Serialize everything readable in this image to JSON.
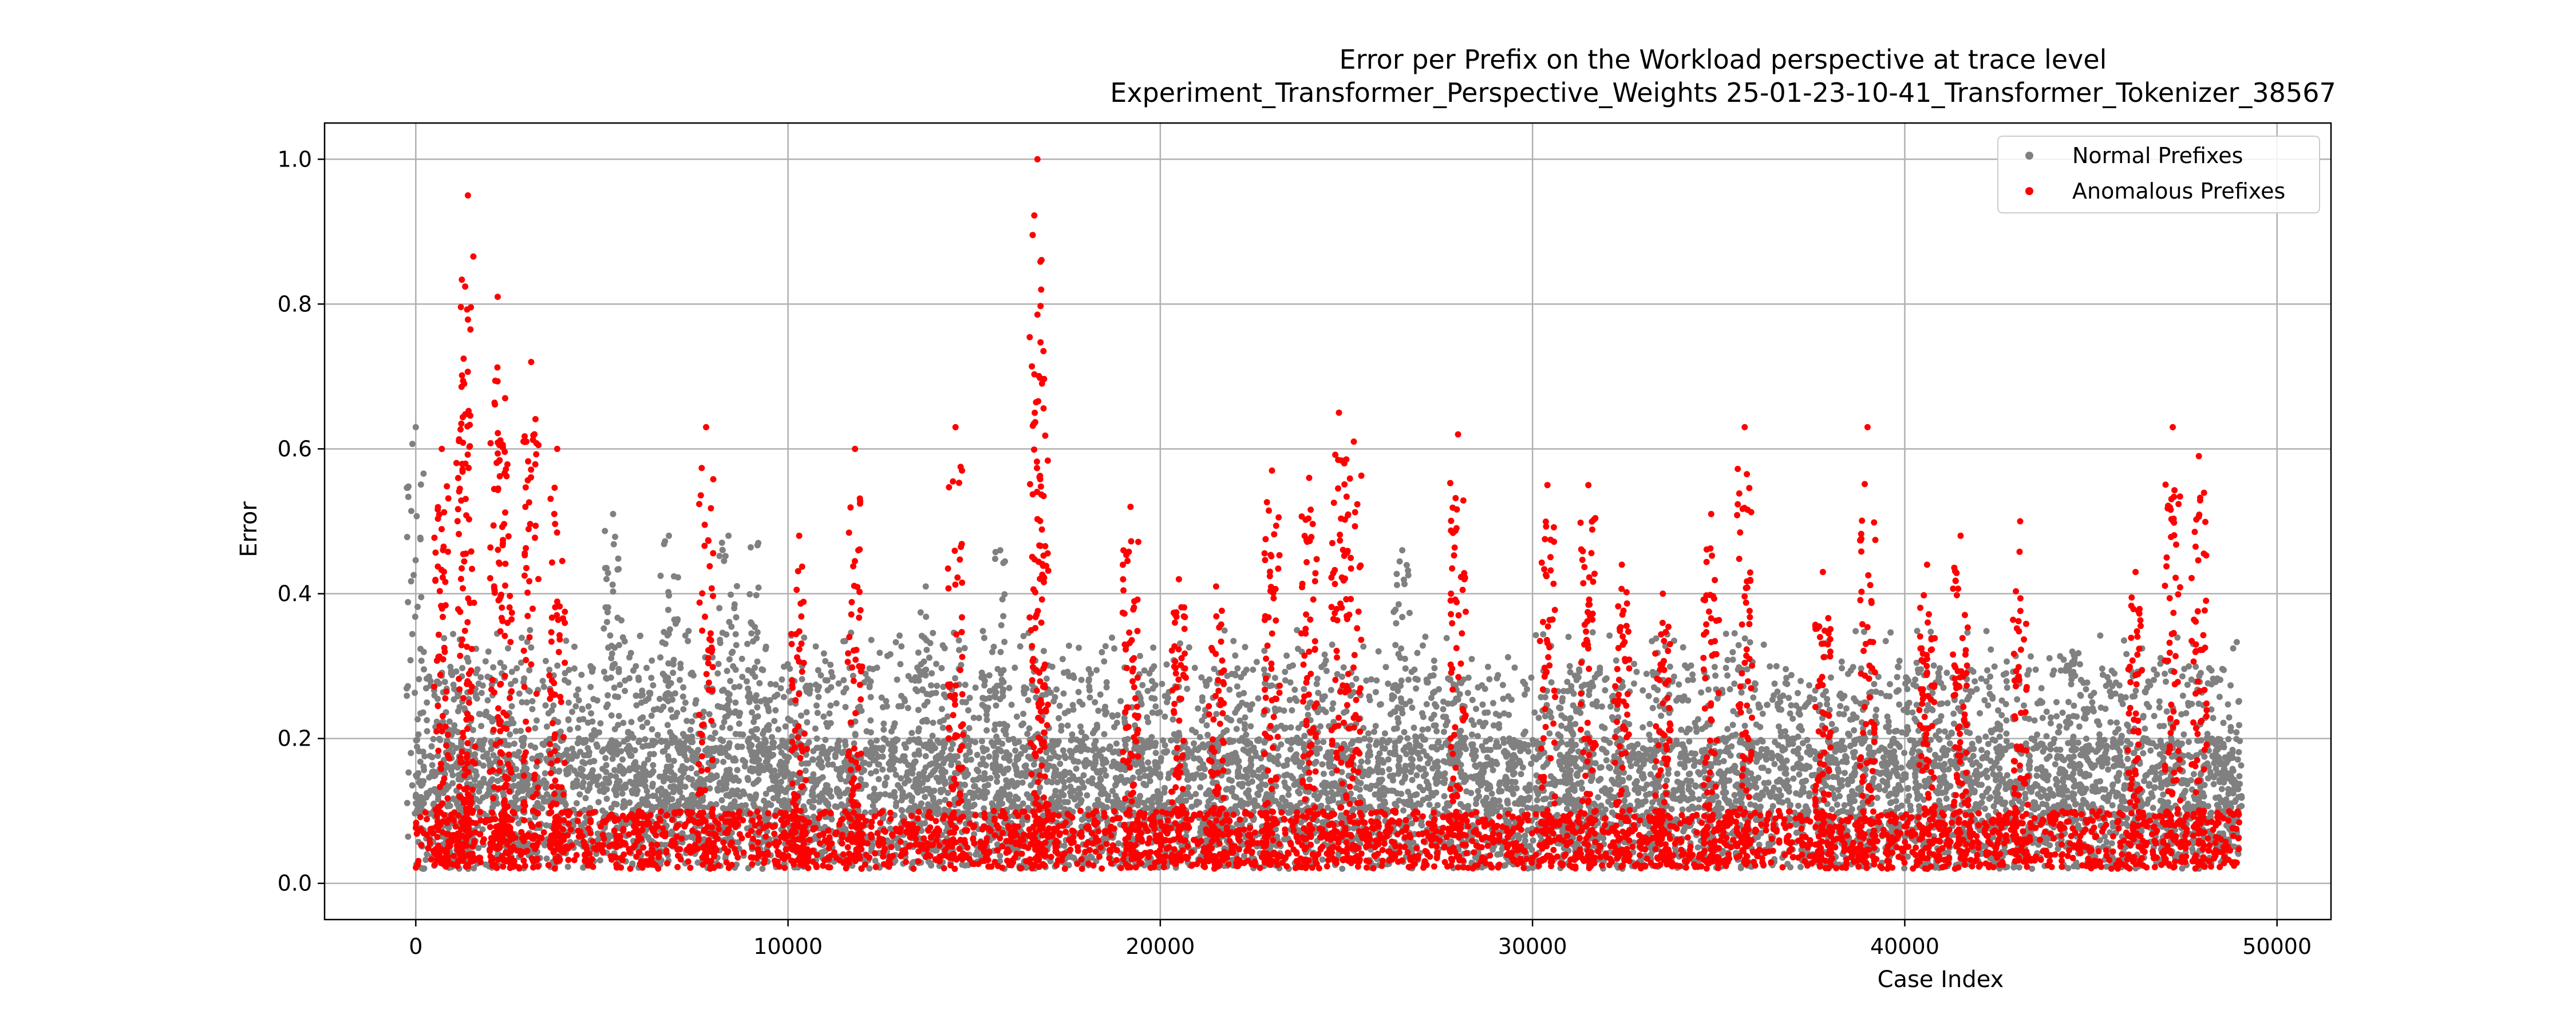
{
  "chart_data": {
    "type": "scatter",
    "title": "Error per Prefix on the Workload perspective at trace level",
    "subtitle": "Experiment_Transformer_Perspective_Weights     25-01-23-10-41_Transformer_Tokenizer_38567",
    "xlabel": "Case Index",
    "ylabel": "Error",
    "xlim": [
      -2450,
      51450
    ],
    "ylim": [
      -0.05,
      1.05
    ],
    "xticks": [
      0,
      10000,
      20000,
      30000,
      40000,
      50000
    ],
    "xtick_labels": [
      "0",
      "10000",
      "20000",
      "30000",
      "40000",
      "50000"
    ],
    "yticks": [
      0.0,
      0.2,
      0.4,
      0.6,
      0.8,
      1.0
    ],
    "ytick_labels": [
      "0.0",
      "0.2",
      "0.4",
      "0.6",
      "0.8",
      "1.0"
    ],
    "grid": true,
    "legend_position": "top-right",
    "x_range": [
      0,
      49000
    ],
    "series": [
      {
        "name": "Normal Prefixes",
        "color": "#808080",
        "description_points": "dense band of points across the full index range, mostly between 0.0 and 0.3",
        "peaks": [
          {
            "x": 0,
            "y": 0.63
          },
          {
            "x": 5300,
            "y": 0.51
          },
          {
            "x": 6800,
            "y": 0.48
          },
          {
            "x": 8400,
            "y": 0.48
          },
          {
            "x": 9200,
            "y": 0.47
          },
          {
            "x": 13700,
            "y": 0.41
          },
          {
            "x": 15700,
            "y": 0.46
          },
          {
            "x": 26500,
            "y": 0.46
          },
          {
            "x": 31000,
            "y": 0.3
          },
          {
            "x": 44500,
            "y": 0.32
          },
          {
            "x": 48800,
            "y": 0.18
          }
        ]
      },
      {
        "name": "Anomalous Prefixes",
        "color": "#ff0000",
        "peaks": [
          {
            "x": 1400,
            "y": 0.95
          },
          {
            "x": 2200,
            "y": 0.81
          },
          {
            "x": 3100,
            "y": 0.72
          },
          {
            "x": 1300,
            "y": 0.69
          },
          {
            "x": 2400,
            "y": 0.67
          },
          {
            "x": 700,
            "y": 0.6
          },
          {
            "x": 3800,
            "y": 0.6
          },
          {
            "x": 7800,
            "y": 0.63
          },
          {
            "x": 10300,
            "y": 0.48
          },
          {
            "x": 11800,
            "y": 0.6
          },
          {
            "x": 14500,
            "y": 0.63
          },
          {
            "x": 16700,
            "y": 1.0
          },
          {
            "x": 16800,
            "y": 0.82
          },
          {
            "x": 19200,
            "y": 0.52
          },
          {
            "x": 20500,
            "y": 0.42
          },
          {
            "x": 21500,
            "y": 0.41
          },
          {
            "x": 23000,
            "y": 0.57
          },
          {
            "x": 24000,
            "y": 0.56
          },
          {
            "x": 24800,
            "y": 0.65
          },
          {
            "x": 25200,
            "y": 0.61
          },
          {
            "x": 28000,
            "y": 0.62
          },
          {
            "x": 30400,
            "y": 0.55
          },
          {
            "x": 31500,
            "y": 0.55
          },
          {
            "x": 32400,
            "y": 0.44
          },
          {
            "x": 33500,
            "y": 0.4
          },
          {
            "x": 34800,
            "y": 0.51
          },
          {
            "x": 35700,
            "y": 0.63
          },
          {
            "x": 37800,
            "y": 0.43
          },
          {
            "x": 39000,
            "y": 0.63
          },
          {
            "x": 40600,
            "y": 0.44
          },
          {
            "x": 41500,
            "y": 0.48
          },
          {
            "x": 43100,
            "y": 0.5
          },
          {
            "x": 46200,
            "y": 0.43
          },
          {
            "x": 47200,
            "y": 0.63
          },
          {
            "x": 47900,
            "y": 0.59
          }
        ]
      }
    ]
  }
}
